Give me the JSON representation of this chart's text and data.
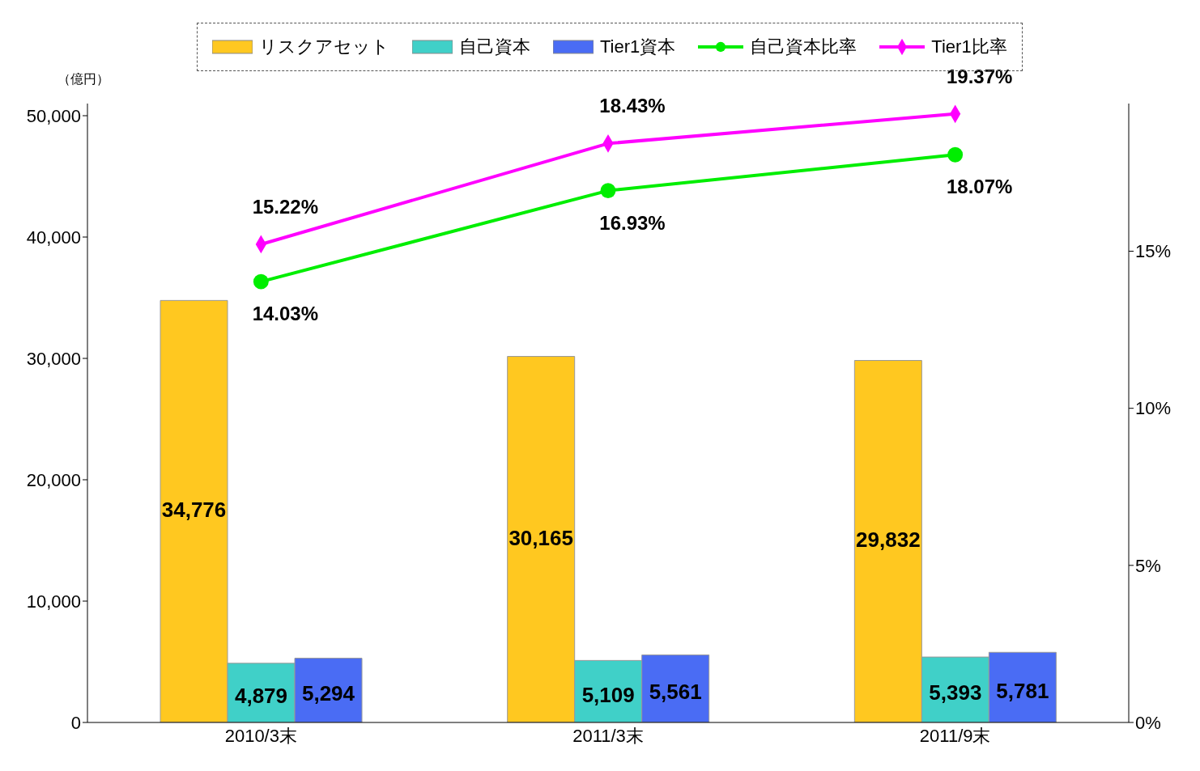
{
  "chart_data": {
    "type": "bar",
    "ylabel": "（億円）",
    "categories": [
      "2010/3末",
      "2011/3末",
      "2011/9末"
    ],
    "series": [
      {
        "name": "リスクアセット",
        "color": "#ffc820",
        "values": [
          34776,
          30165,
          29832
        ],
        "value_labels": [
          "34,776",
          "30,165",
          "29,832"
        ]
      },
      {
        "name": "自己資本",
        "color": "#40d0c8",
        "values": [
          4879,
          5109,
          5393
        ],
        "value_labels": [
          "4,879",
          "5,109",
          "5,393"
        ]
      },
      {
        "name": "Tier1資本",
        "color": "#4a6cf4",
        "values": [
          5294,
          5561,
          5781
        ],
        "value_labels": [
          "5,294",
          "5,561",
          "5,781"
        ]
      },
      {
        "name": "自己資本比率",
        "type": "line",
        "axis": "y2",
        "marker": "circle",
        "color": "#00ee00",
        "values": [
          14.03,
          16.93,
          18.07
        ],
        "value_labels": [
          "14.03%",
          "16.93%",
          "18.07%"
        ]
      },
      {
        "name": "Tier1比率",
        "type": "line",
        "axis": "y2",
        "marker": "diamond",
        "color": "#ff00ff",
        "values": [
          15.22,
          18.43,
          19.37
        ],
        "value_labels": [
          "15.22%",
          "18.43%",
          "19.37%"
        ]
      }
    ],
    "ylim": [
      0,
      51000
    ],
    "yticks": [
      0,
      {
        "value": 10000,
        "label": "10,000"
      },
      {
        "value": 20000,
        "label": "20,000"
      },
      {
        "value": 30000,
        "label": "30,000"
      },
      {
        "value": 40000,
        "label": "40,000"
      },
      {
        "value": 50000,
        "label": "50,000"
      }
    ],
    "y2lim": [
      0,
      19.7
    ],
    "y2ticks": [
      {
        "value": 0,
        "label": "0%"
      },
      {
        "value": 5,
        "label": "5%"
      },
      {
        "value": 10,
        "label": "10%"
      },
      {
        "value": 15,
        "label": "15%"
      }
    ],
    "legend": "top",
    "grid": false
  }
}
